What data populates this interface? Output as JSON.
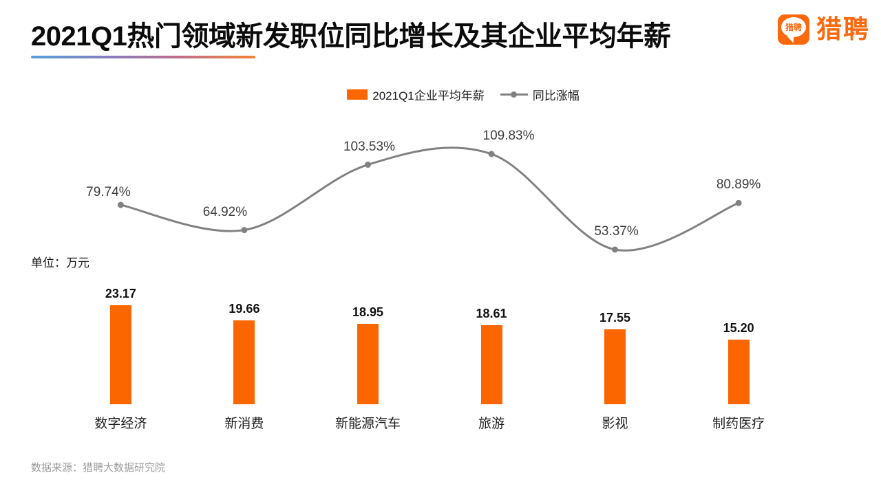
{
  "header": {
    "title": "2021Q1热门领域新发职位同比增长及其企业平均年薪",
    "logo_text": "猎聘",
    "logo_badge_text": "猎聘"
  },
  "legend": {
    "bar_label": "2021Q1企业平均年薪",
    "line_label": "同比涨幅"
  },
  "unit_label": "单位：万元",
  "source": "数据来源：猎聘大数据研究院",
  "colors": {
    "bar": "#fc6600",
    "line": "#818181",
    "brand": "#fb690f",
    "underline_gradient_start": "#589fdb",
    "underline_gradient_end": "#f28435"
  },
  "chart_data": {
    "type": "bar",
    "subtype": "bar+line combo",
    "title": "2021Q1热门领域新发职位同比增长及其企业平均年薪",
    "categories": [
      "数字经济",
      "新消费",
      "新能源汽车",
      "旅游",
      "影视",
      "制药医疗"
    ],
    "series": [
      {
        "name": "2021Q1企业平均年薪",
        "type": "bar",
        "unit": "万元",
        "values": [
          23.17,
          19.66,
          18.95,
          18.61,
          17.55,
          15.2
        ]
      },
      {
        "name": "同比涨幅",
        "type": "line",
        "unit": "%",
        "values": [
          79.74,
          64.92,
          103.53,
          109.83,
          53.37,
          80.89
        ]
      }
    ],
    "xlabel": "",
    "ylabel": "单位：万元",
    "grid": false,
    "axes_visible": false,
    "legend_position": "top",
    "data_labels": true
  }
}
